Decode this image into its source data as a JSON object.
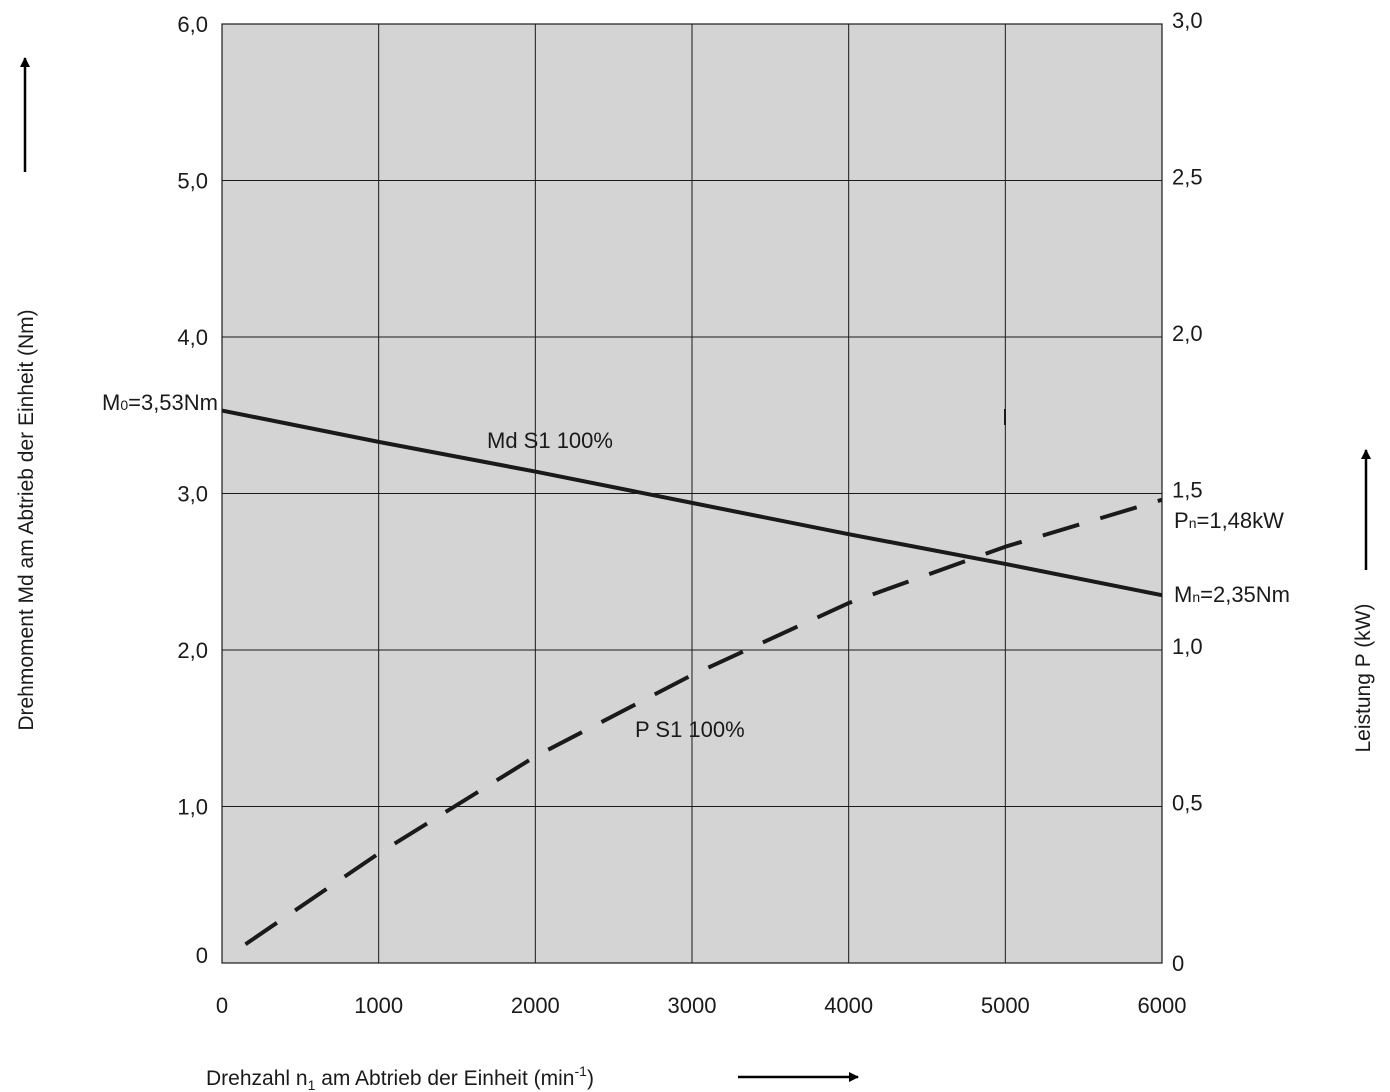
{
  "chart_data": {
    "type": "line",
    "background_color": "#d4d4d4",
    "grid": true,
    "x": [
      0,
      6000
    ],
    "xlim": [
      0,
      6000
    ],
    "xticks": [
      "0",
      "1000",
      "2000",
      "3000",
      "4000",
      "5000",
      "6000"
    ],
    "xlabel_prefix": "Drehzahl n",
    "xlabel_sub": "1",
    "xlabel_middle": " am Abtrieb der Einheit (min",
    "xlabel_sup": "-1",
    "xlabel_suffix": ")",
    "ylabel_left": "Drehmoment Md am Abtrieb der Einheit (Nm)",
    "ylim_left": [
      0,
      6
    ],
    "yticks_left": [
      "0",
      "1,0",
      "2,0",
      "3,0",
      "4,0",
      "5,0",
      "6,0"
    ],
    "ylabel_right": "Leistung P (kW)",
    "ylim_right": [
      0,
      3
    ],
    "yticks_right": [
      "0",
      "0,5",
      "1,0",
      "1,5",
      "2,0",
      "2,5",
      "3,0"
    ],
    "series": [
      {
        "name": "Md S1 100%",
        "axis": "left",
        "style": "solid",
        "color": "#1a1a1a",
        "x": [
          0,
          1000,
          2000,
          3000,
          4000,
          5000,
          6000
        ],
        "y": [
          3.53,
          3.33,
          3.14,
          2.94,
          2.74,
          2.55,
          2.35
        ]
      },
      {
        "name": "P S1 100%",
        "axis": "right",
        "style": "dashed",
        "color": "#1a1a1a",
        "x": [
          150,
          1000,
          2000,
          3000,
          4000,
          5000,
          6000
        ],
        "y": [
          0.06,
          0.35,
          0.66,
          0.92,
          1.15,
          1.33,
          1.48
        ]
      }
    ],
    "annotations": {
      "m0_main": "M",
      "m0_sub": "0",
      "m0_value": "=3,53Nm",
      "mn_main": "M",
      "mn_sub": "n",
      "mn_value": "=2,35Nm",
      "pn_main": "P",
      "pn_sub": "n",
      "pn_value": "=1,48kW"
    }
  }
}
